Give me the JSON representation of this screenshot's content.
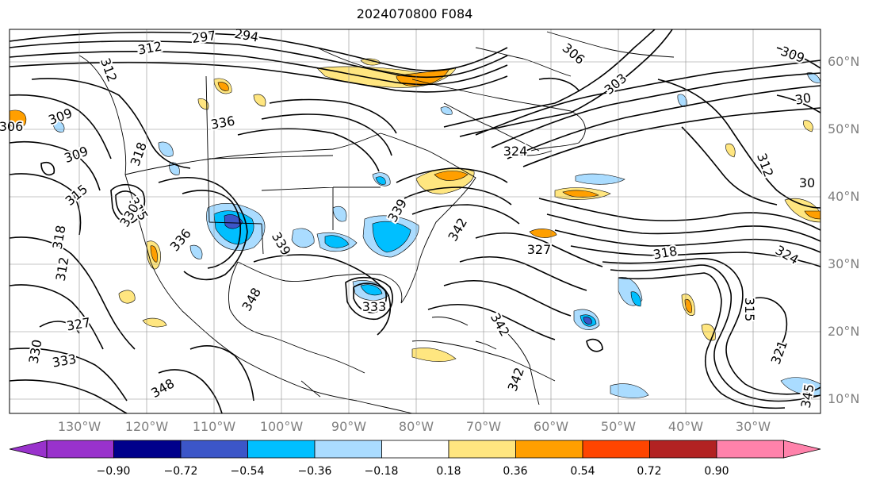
{
  "title": "2024070800 F084",
  "lat_labels": [
    "60°N",
    "50°N",
    "40°N",
    "30°N",
    "20°N",
    "10°N"
  ],
  "lon_labels": [
    "130°W",
    "120°W",
    "110°W",
    "100°W",
    "90°W",
    "80°W",
    "70°W",
    "60°W",
    "50°W",
    "40°W",
    "30°W"
  ],
  "contour_labels": [
    "297",
    "294",
    "312",
    "312",
    "306",
    "309",
    "306",
    "303",
    "309",
    "312",
    "336",
    "309",
    "318",
    "315",
    "318",
    "315",
    "312",
    "330",
    "336",
    "339",
    "339",
    "342",
    "324",
    "327",
    "318",
    "324",
    "348",
    "333",
    "315",
    "321",
    "330",
    "327",
    "333",
    "348",
    "342",
    "342",
    "345",
    "30",
    "30"
  ],
  "colorbar": {
    "ticks": [
      "−0.90",
      "−0.72",
      "−0.54",
      "−0.36",
      "−0.18",
      "0.18",
      "0.36",
      "0.54",
      "0.72",
      "0.90"
    ],
    "colors": [
      "#9932cc",
      "#00008b",
      "#3c56c8",
      "#00bfff",
      "#aadcff",
      "#ffffff",
      "#ffe680",
      "#ff9f00",
      "#ff4500",
      "#b22222",
      "#ff82ab"
    ]
  },
  "colors": {
    "frame": "#000000",
    "grid": "#808080",
    "contour": "#000000",
    "coast": "#000000"
  }
}
